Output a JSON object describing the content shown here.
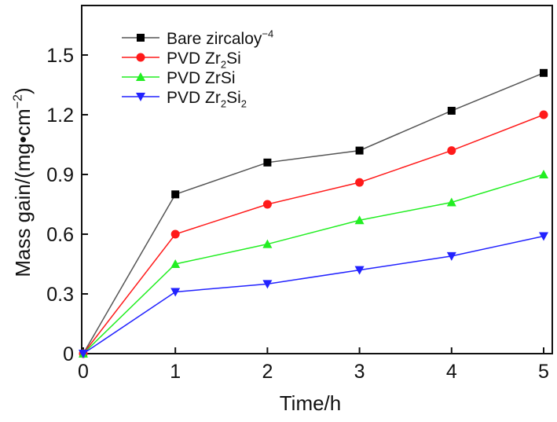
{
  "chart_data": {
    "type": "line",
    "title": "",
    "xlabel": "Time/h",
    "ylabel": [
      {
        "t": "Mass gain/(mg•cm"
      },
      {
        "t": "−2",
        "sup": true
      },
      {
        "t": ")"
      }
    ],
    "xlim": [
      0,
      5
    ],
    "ylim": [
      0,
      1.75
    ],
    "xticks": [
      0,
      1,
      2,
      3,
      4,
      5
    ],
    "xtick_labels": [
      "0",
      "1",
      "2",
      "3",
      "4",
      "5"
    ],
    "yticks": [
      0,
      0.3,
      0.6,
      0.9,
      1.2,
      1.5
    ],
    "ytick_labels": [
      "0",
      "0.3",
      "0.6",
      "0.9",
      "1.2",
      "1.5"
    ],
    "grid": false,
    "legend_position": "top-left",
    "x": [
      0,
      1,
      2,
      3,
      4,
      5
    ],
    "series": [
      {
        "name": "Bare zircaloy-4",
        "label": [
          {
            "t": "Bare zircaloy"
          },
          {
            "t": "−4",
            "sup": true
          }
        ],
        "color": "#000000",
        "line_color": "#555555",
        "marker": "square",
        "values": [
          0,
          0.8,
          0.96,
          1.02,
          1.22,
          1.41
        ]
      },
      {
        "name": "PVD Zr2Si",
        "label": [
          {
            "t": "PVD Zr"
          },
          {
            "t": "2",
            "sub": true
          },
          {
            "t": "Si"
          }
        ],
        "color": "#ff1a1a",
        "line_color": "#ff1a1a",
        "marker": "circle",
        "values": [
          0,
          0.6,
          0.75,
          0.86,
          1.02,
          1.2
        ]
      },
      {
        "name": "PVD ZrSi",
        "label": [
          {
            "t": "PVD ZrSi"
          }
        ],
        "color": "#22ee22",
        "line_color": "#22ee22",
        "marker": "triangle-up",
        "values": [
          0,
          0.45,
          0.55,
          0.67,
          0.76,
          0.9
        ]
      },
      {
        "name": "PVD Zr2Si2",
        "label": [
          {
            "t": "PVD Zr"
          },
          {
            "t": "2",
            "sub": true
          },
          {
            "t": "Si"
          },
          {
            "t": "2",
            "sub": true
          }
        ],
        "color": "#2222ff",
        "line_color": "#2222ff",
        "marker": "triangle-down",
        "values": [
          0,
          0.31,
          0.35,
          0.42,
          0.49,
          0.59
        ]
      }
    ]
  }
}
